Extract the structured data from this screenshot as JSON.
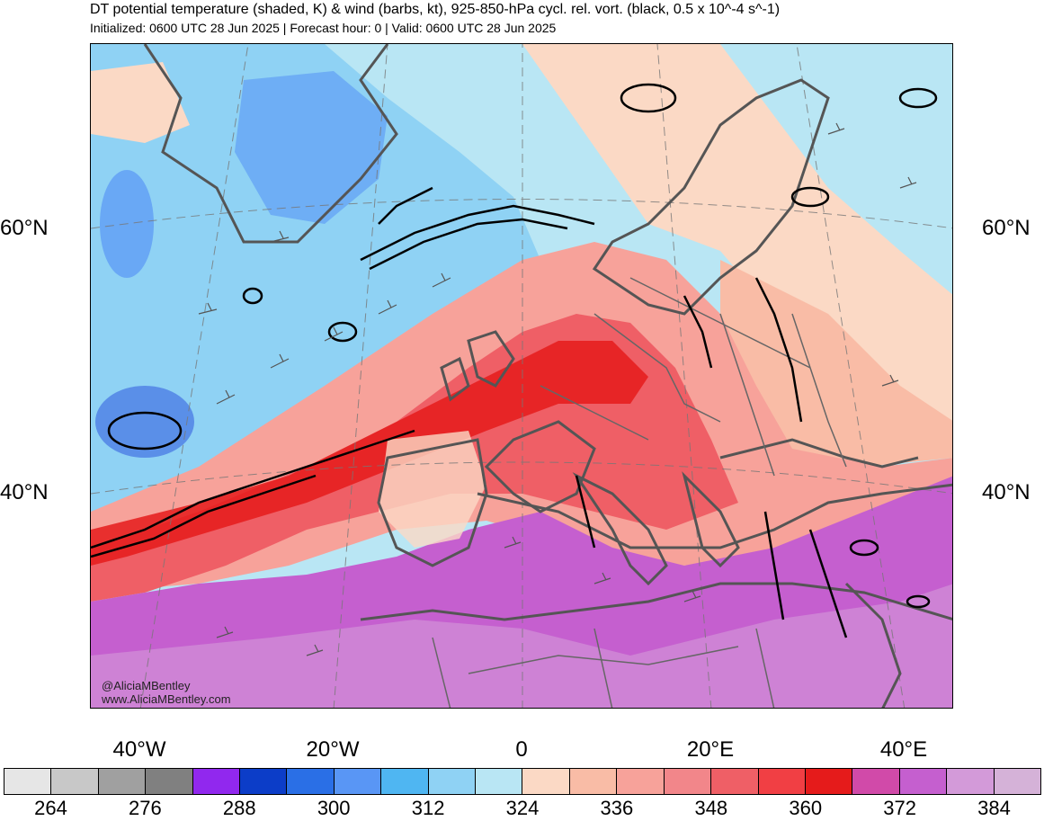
{
  "title": "DT potential temperature (shaded, K) & wind (barbs, kt), 925-850-hPa cycl. rel. vort. (black, 0.5 x 10^-4 s^-1)",
  "subtitle": "Initialized: 0600 UTC 28 Jun 2025 | Forecast hour: 0 | Valid: 0600 UTC 28 Jun 2025",
  "credit": {
    "handle": "@AliciaMBentley",
    "website": "www.AliciaMBentley.com"
  },
  "lat_labels": {
    "left_60": "60°N",
    "right_60": "60°N",
    "left_40": "40°N",
    "right_40": "40°N"
  },
  "lon_labels": [
    "40°W",
    "20°W",
    "0",
    "20°E",
    "40°E"
  ],
  "colorbar": {
    "colors": [
      "#e6e6e6",
      "#c8c8c8",
      "#a0a0a0",
      "#808080",
      "#9128ee",
      "#0c3dc8",
      "#2a6fe6",
      "#5996f5",
      "#4fb6f2",
      "#8fd2f4",
      "#b9e6f4",
      "#fbd9c5",
      "#f9bca6",
      "#f7a29a",
      "#f2868a",
      "#ef5f66",
      "#f13f44",
      "#e51b1b",
      "#d14aa9",
      "#c55fcf",
      "#d39ad9",
      "#d5b2d8"
    ],
    "tick_labels": [
      "264",
      "276",
      "288",
      "300",
      "312",
      "324",
      "336",
      "348",
      "360",
      "372",
      "384"
    ]
  },
  "colors": {
    "cold_deep": "#5a8fe8",
    "cold": "#8fd2f4",
    "cool": "#b9e6f4",
    "mild": "#fbd9c5",
    "warm": "#f7a29a",
    "hot": "#e51b1b",
    "very_hot": "#c55fcf",
    "coastline": "#555555",
    "vorticity": "#000000"
  }
}
